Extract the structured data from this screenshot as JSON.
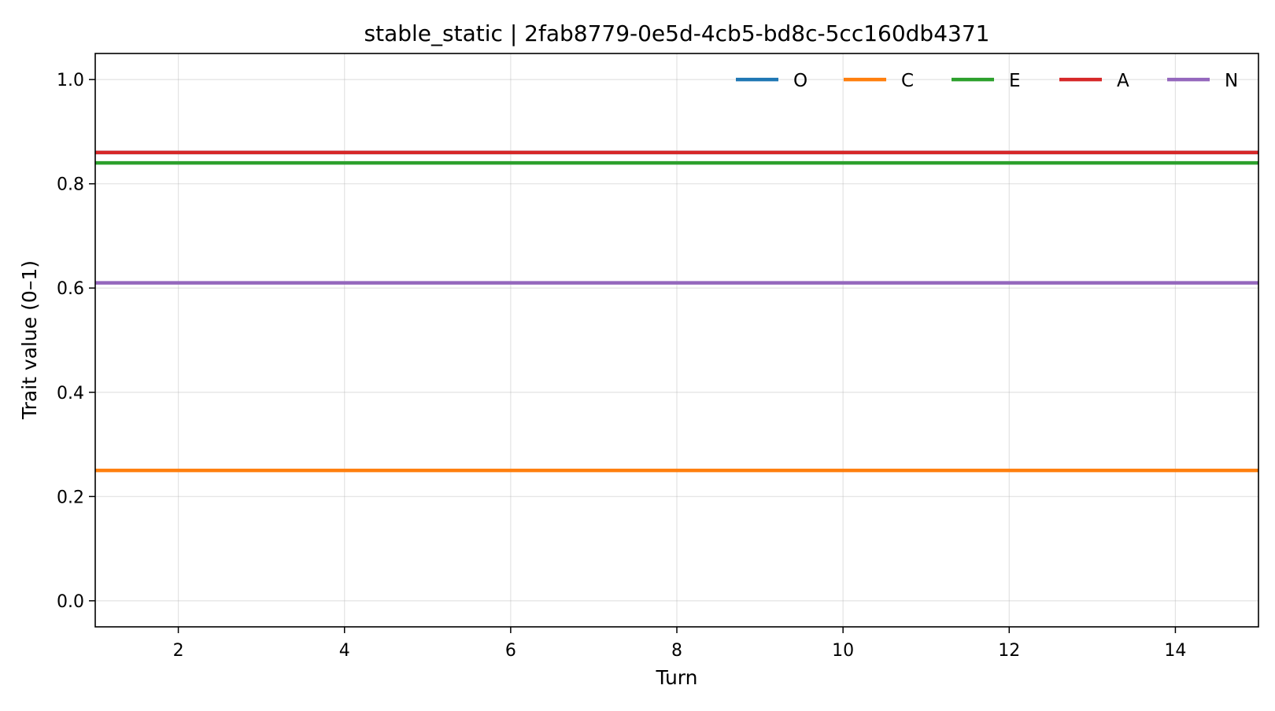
{
  "chart_data": {
    "type": "line",
    "title": "stable_static | 2fab8779-0e5d-4cb5-bd8c-5cc160db4371",
    "xlabel": "Turn",
    "ylabel": "Trait value (0–1)",
    "xlim": [
      1,
      15
    ],
    "ylim": [
      -0.05,
      1.05
    ],
    "x_ticks": [
      2,
      4,
      6,
      8,
      10,
      12,
      14
    ],
    "y_ticks": [
      0.0,
      0.2,
      0.4,
      0.6,
      0.8,
      1.0
    ],
    "grid": true,
    "legend_position": "top-right",
    "x": [
      1,
      2,
      3,
      4,
      5,
      6,
      7,
      8,
      9,
      10,
      11,
      12,
      13,
      14,
      15
    ],
    "series": [
      {
        "name": "O",
        "color": "#1f77b4",
        "values": [
          0.86,
          0.86,
          0.86,
          0.86,
          0.86,
          0.86,
          0.86,
          0.86,
          0.86,
          0.86,
          0.86,
          0.86,
          0.86,
          0.86,
          0.86
        ]
      },
      {
        "name": "C",
        "color": "#ff7f0e",
        "values": [
          0.25,
          0.25,
          0.25,
          0.25,
          0.25,
          0.25,
          0.25,
          0.25,
          0.25,
          0.25,
          0.25,
          0.25,
          0.25,
          0.25,
          0.25
        ]
      },
      {
        "name": "E",
        "color": "#2ca02c",
        "values": [
          0.84,
          0.84,
          0.84,
          0.84,
          0.84,
          0.84,
          0.84,
          0.84,
          0.84,
          0.84,
          0.84,
          0.84,
          0.84,
          0.84,
          0.84
        ]
      },
      {
        "name": "A",
        "color": "#d62728",
        "values": [
          0.86,
          0.86,
          0.86,
          0.86,
          0.86,
          0.86,
          0.86,
          0.86,
          0.86,
          0.86,
          0.86,
          0.86,
          0.86,
          0.86,
          0.86
        ]
      },
      {
        "name": "N",
        "color": "#9467bd",
        "values": [
          0.61,
          0.61,
          0.61,
          0.61,
          0.61,
          0.61,
          0.61,
          0.61,
          0.61,
          0.61,
          0.61,
          0.61,
          0.61,
          0.61,
          0.61
        ]
      }
    ]
  }
}
